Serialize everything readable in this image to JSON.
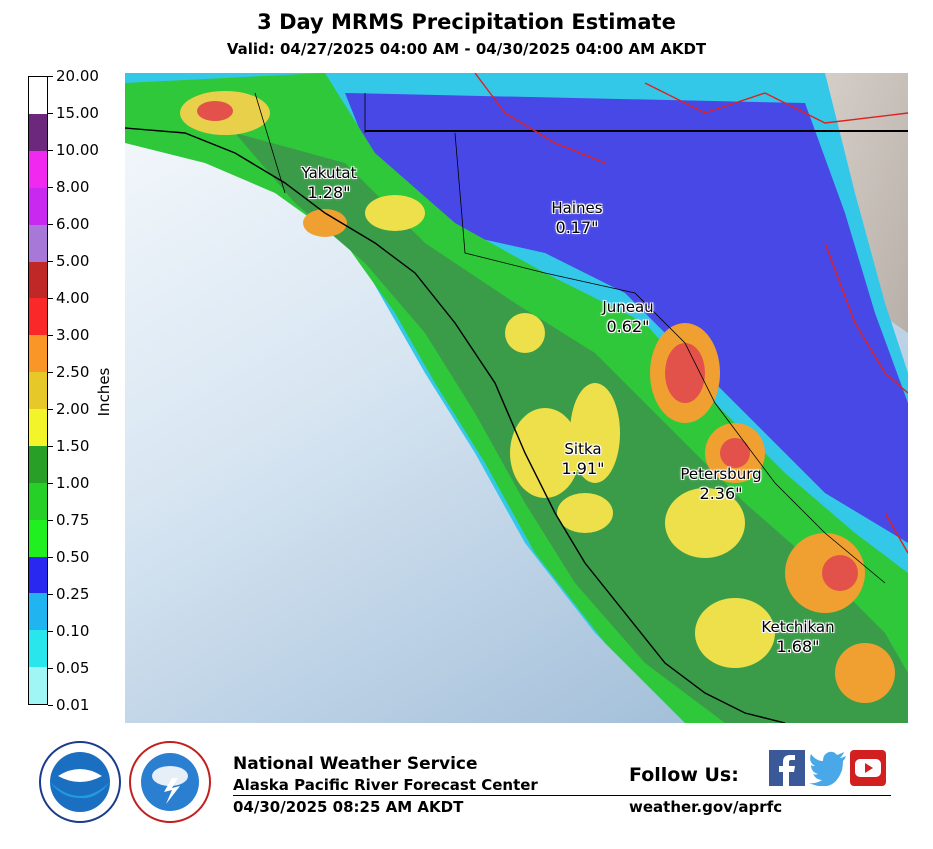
{
  "header": {
    "title": "3 Day MRMS Precipitation Estimate",
    "subtitle": "Valid: 04/27/2025 04:00 AM - 04/30/2025 04:00 AM AKDT"
  },
  "legend": {
    "unit_label": "Inches",
    "ticks": [
      "0.01",
      "0.05",
      "0.10",
      "0.25",
      "0.50",
      "0.75",
      "1.00",
      "1.50",
      "2.00",
      "2.50",
      "3.00",
      "4.00",
      "5.00",
      "6.00",
      "8.00",
      "10.00",
      "15.00",
      "20.00"
    ],
    "colors": [
      "#a0f5f5",
      "#28e6ec",
      "#20b4f0",
      "#2828f0",
      "#20f020",
      "#26d026",
      "#28a028",
      "#f4f42a",
      "#e6c828",
      "#fa9628",
      "#fa2828",
      "#c02828",
      "#a878d8",
      "#c828f0",
      "#f028f0",
      "#6c287c",
      "#ffffff"
    ]
  },
  "map": {
    "colors": {
      "ocean_light": "#f2f6fb",
      "ocean_dark": "#a8c4dc",
      "dark_green": "#3c9c48",
      "green": "#2ed23a",
      "yellow": "#ede04a",
      "orange": "#f0a030",
      "red": "#e2524a",
      "blue": "#4444e8",
      "cyan": "#32d0e6",
      "terrain": "#c8c0b8",
      "roads": "#e02020"
    },
    "cities": [
      {
        "name": "Yakutat",
        "amount": "1.28\""
      },
      {
        "name": "Haines",
        "amount": "0.17\""
      },
      {
        "name": "Juneau",
        "amount": "0.62\""
      },
      {
        "name": "Sitka",
        "amount": "1.91\""
      },
      {
        "name": "Petersburg",
        "amount": "2.36\""
      },
      {
        "name": "Ketchikan",
        "amount": "1.68\""
      }
    ]
  },
  "footer": {
    "agency": "National Weather Service",
    "office": "Alaska Pacific River Forecast Center",
    "timestamp": "04/30/2025 08:25 AM AKDT",
    "follow_label": "Follow Us:",
    "website": "weather.gov/aprfc",
    "logos": [
      "noaa-logo",
      "nws-logo"
    ],
    "social": [
      "facebook-icon",
      "twitter-icon",
      "youtube-icon"
    ]
  }
}
